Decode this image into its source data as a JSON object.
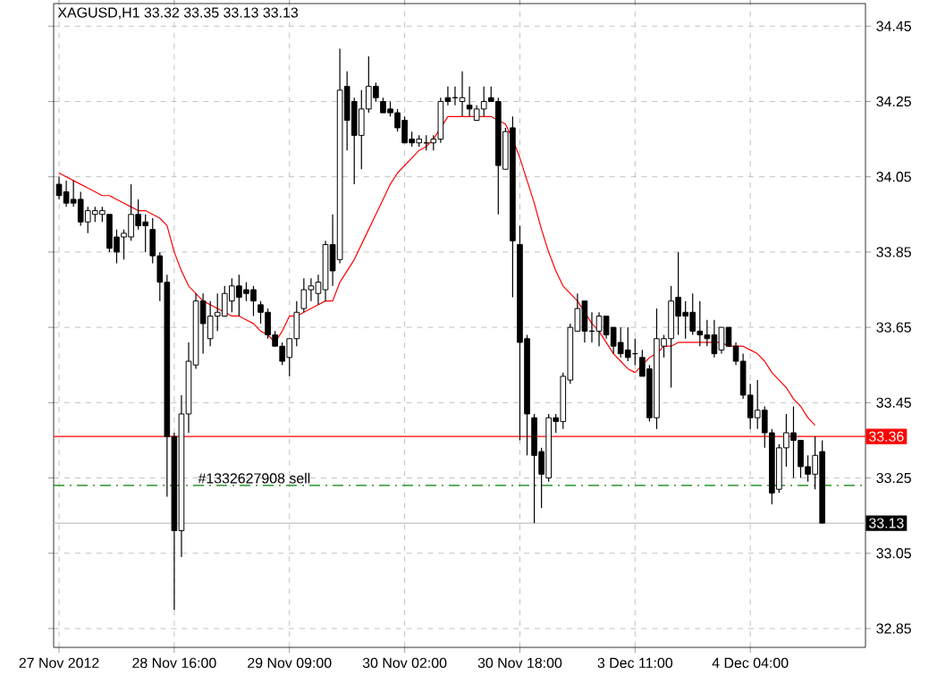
{
  "chart_data": {
    "type": "candlestick",
    "title": "XAGUSD,H1  33.32 33.35 33.13 33.13",
    "categories": [
      "27 Nov 2012",
      null,
      null,
      null,
      null,
      null,
      null,
      null,
      null,
      null,
      null,
      null,
      null,
      null,
      null,
      null,
      "28 Nov 16:00",
      null,
      null,
      null,
      null,
      null,
      null,
      null,
      null,
      null,
      null,
      null,
      null,
      null,
      null,
      null,
      "29 Nov 09:00",
      null,
      null,
      null,
      null,
      null,
      null,
      null,
      null,
      null,
      null,
      null,
      null,
      null,
      null,
      null,
      "30 Nov 02:00",
      null,
      null,
      null,
      null,
      null,
      null,
      null,
      null,
      null,
      null,
      null,
      null,
      null,
      null,
      null,
      "30 Nov 18:00",
      null,
      null,
      null,
      null,
      null,
      null,
      null,
      null,
      null,
      null,
      null,
      null,
      null,
      null,
      null,
      "3 Dec 11:00",
      null,
      null,
      null,
      null,
      null,
      null,
      null,
      null,
      null,
      null,
      null,
      null,
      null,
      null,
      null,
      "4 Dec 04:00",
      null,
      null,
      null,
      null,
      null,
      null,
      null,
      null,
      null,
      null
    ],
    "ohlc": [
      [
        34.03,
        34.05,
        33.99,
        34.0
      ],
      [
        34.01,
        34.04,
        33.97,
        33.98
      ],
      [
        33.99,
        34.04,
        33.97,
        33.98
      ],
      [
        33.99,
        34.01,
        33.92,
        33.93
      ],
      [
        33.93,
        33.97,
        33.9,
        33.96
      ],
      [
        33.95,
        33.97,
        33.93,
        33.96
      ],
      [
        33.95,
        33.97,
        33.93,
        33.96
      ],
      [
        33.95,
        33.95,
        33.85,
        33.86
      ],
      [
        33.89,
        33.91,
        33.82,
        33.85
      ],
      [
        33.89,
        33.91,
        33.83,
        33.9
      ],
      [
        33.89,
        34.03,
        33.88,
        33.95
      ],
      [
        33.95,
        33.99,
        33.91,
        33.92
      ],
      [
        33.93,
        33.95,
        33.85,
        33.92
      ],
      [
        33.91,
        33.94,
        33.82,
        33.84
      ],
      [
        33.84,
        33.85,
        33.72,
        33.77
      ],
      [
        33.77,
        33.79,
        33.2,
        33.36
      ],
      [
        33.36,
        33.37,
        32.9,
        33.11
      ],
      [
        33.11,
        33.47,
        33.04,
        33.42
      ],
      [
        33.42,
        33.61,
        33.37,
        33.56
      ],
      [
        33.55,
        33.74,
        33.54,
        33.72
      ],
      [
        33.72,
        33.74,
        33.58,
        33.66
      ],
      [
        33.62,
        33.72,
        33.6,
        33.68
      ],
      [
        33.68,
        33.74,
        33.64,
        33.69
      ],
      [
        33.68,
        33.76,
        33.68,
        33.74
      ],
      [
        33.72,
        33.78,
        33.69,
        33.76
      ],
      [
        33.76,
        33.79,
        33.68,
        33.73
      ],
      [
        33.75,
        33.77,
        33.72,
        33.74
      ],
      [
        33.75,
        33.76,
        33.68,
        33.72
      ],
      [
        33.71,
        33.72,
        33.66,
        33.69
      ],
      [
        33.69,
        33.7,
        33.62,
        33.63
      ],
      [
        33.63,
        33.64,
        33.6,
        33.6
      ],
      [
        33.6,
        33.61,
        33.55,
        33.56
      ],
      [
        33.57,
        33.62,
        33.52,
        33.62
      ],
      [
        33.62,
        33.72,
        33.6,
        33.69
      ],
      [
        33.7,
        33.78,
        33.69,
        33.75
      ],
      [
        33.75,
        33.78,
        33.72,
        33.76
      ],
      [
        33.74,
        33.79,
        33.71,
        33.77
      ],
      [
        33.75,
        33.88,
        33.72,
        33.87
      ],
      [
        33.87,
        33.95,
        33.76,
        33.8
      ],
      [
        33.83,
        34.39,
        33.82,
        34.28
      ],
      [
        34.29,
        34.33,
        34.12,
        34.2
      ],
      [
        34.25,
        34.26,
        34.03,
        34.16
      ],
      [
        34.16,
        34.28,
        34.07,
        34.23
      ],
      [
        34.23,
        34.37,
        34.22,
        34.29
      ],
      [
        34.29,
        34.3,
        34.25,
        34.26
      ],
      [
        34.25,
        34.26,
        34.22,
        34.22
      ],
      [
        34.23,
        34.25,
        34.21,
        34.22
      ],
      [
        34.22,
        34.23,
        34.17,
        34.18
      ],
      [
        34.2,
        34.21,
        34.14,
        34.14
      ],
      [
        34.15,
        34.17,
        34.13,
        34.14
      ],
      [
        34.14,
        34.16,
        34.13,
        34.15
      ],
      [
        34.14,
        34.16,
        34.12,
        34.14
      ],
      [
        34.14,
        34.16,
        34.12,
        34.15
      ],
      [
        34.15,
        34.26,
        34.14,
        34.25
      ],
      [
        34.26,
        34.29,
        34.24,
        34.25
      ],
      [
        34.26,
        34.29,
        34.24,
        34.26
      ],
      [
        34.25,
        34.33,
        34.21,
        34.26
      ],
      [
        34.24,
        34.29,
        34.21,
        34.23
      ],
      [
        34.2,
        34.24,
        34.2,
        34.23
      ],
      [
        34.23,
        34.29,
        34.21,
        34.25
      ],
      [
        34.26,
        34.29,
        34.25,
        34.25
      ],
      [
        34.25,
        34.26,
        33.95,
        34.08
      ],
      [
        34.07,
        34.18,
        34.07,
        34.17
      ],
      [
        34.18,
        34.21,
        33.73,
        33.88
      ],
      [
        33.87,
        33.92,
        33.35,
        33.61
      ],
      [
        33.62,
        33.63,
        33.31,
        33.42
      ],
      [
        33.41,
        33.42,
        33.13,
        33.31
      ],
      [
        33.32,
        33.33,
        33.17,
        33.26
      ],
      [
        33.25,
        33.42,
        33.24,
        33.41
      ],
      [
        33.41,
        33.42,
        33.37,
        33.4
      ],
      [
        33.4,
        33.53,
        33.38,
        33.52
      ],
      [
        33.51,
        33.66,
        33.5,
        33.65
      ],
      [
        33.64,
        33.74,
        33.64,
        33.7
      ],
      [
        33.72,
        33.72,
        33.61,
        33.64
      ],
      [
        33.64,
        33.69,
        33.61,
        33.64
      ],
      [
        33.64,
        33.69,
        33.6,
        33.68
      ],
      [
        33.68,
        33.68,
        33.62,
        33.63
      ],
      [
        33.65,
        33.65,
        33.58,
        33.6
      ],
      [
        33.61,
        33.65,
        33.57,
        33.58
      ],
      [
        33.59,
        33.65,
        33.56,
        33.57
      ],
      [
        33.58,
        33.62,
        33.55,
        33.58
      ],
      [
        33.57,
        33.59,
        33.52,
        33.52
      ],
      [
        33.54,
        33.55,
        33.4,
        33.41
      ],
      [
        33.41,
        33.7,
        33.38,
        33.62
      ],
      [
        33.6,
        33.63,
        33.57,
        33.62
      ],
      [
        33.62,
        33.76,
        33.49,
        33.72
      ],
      [
        33.73,
        33.85,
        33.63,
        33.68
      ],
      [
        33.69,
        33.72,
        33.62,
        33.68
      ],
      [
        33.69,
        33.74,
        33.63,
        33.64
      ],
      [
        33.64,
        33.72,
        33.6,
        33.63
      ],
      [
        33.63,
        33.67,
        33.6,
        33.62
      ],
      [
        33.63,
        33.67,
        33.57,
        33.58
      ],
      [
        33.59,
        33.65,
        33.58,
        33.65
      ],
      [
        33.65,
        33.65,
        33.6,
        33.6
      ],
      [
        33.6,
        33.61,
        33.55,
        33.56
      ],
      [
        33.56,
        33.58,
        33.46,
        33.47
      ],
      [
        33.47,
        33.5,
        33.38,
        33.41
      ],
      [
        33.41,
        33.51,
        33.38,
        33.43
      ],
      [
        33.43,
        33.44,
        33.33,
        33.37
      ],
      [
        33.37,
        33.38,
        33.18,
        33.21
      ],
      [
        33.22,
        33.34,
        33.21,
        33.33
      ],
      [
        33.33,
        33.42,
        33.28,
        33.37
      ],
      [
        33.37,
        33.44,
        33.25,
        33.35
      ],
      [
        33.35,
        33.35,
        33.25,
        33.28
      ],
      [
        33.28,
        33.31,
        33.24,
        33.26
      ],
      [
        33.26,
        33.36,
        33.22,
        33.31
      ],
      [
        33.32,
        33.35,
        33.13,
        33.13
      ]
    ],
    "series": [
      {
        "type": "line",
        "color": "#ff0000",
        "values": [
          34.06,
          34.05,
          34.04,
          34.03,
          34.02,
          34.01,
          34.0,
          34.0,
          33.99,
          33.98,
          33.97,
          33.96,
          33.96,
          33.95,
          33.94,
          33.92,
          33.85,
          33.8,
          33.76,
          33.74,
          33.72,
          33.71,
          33.7,
          33.69,
          33.68,
          33.68,
          33.67,
          33.66,
          33.64,
          33.63,
          33.61,
          33.64,
          33.68,
          33.68,
          33.69,
          33.7,
          33.71,
          33.72,
          33.72,
          33.77,
          33.8,
          33.83,
          33.87,
          33.91,
          33.95,
          33.99,
          34.03,
          34.06,
          34.08,
          34.1,
          34.12,
          34.13,
          34.15,
          34.18,
          34.21,
          34.21,
          34.21,
          34.21,
          34.21,
          34.21,
          34.21,
          34.2,
          34.19,
          34.15,
          34.1,
          34.04,
          33.98,
          33.91,
          33.85,
          33.8,
          33.76,
          33.74,
          33.72,
          33.69,
          33.66,
          33.64,
          33.61,
          33.58,
          33.56,
          33.54,
          33.53,
          33.55,
          33.57,
          33.58,
          33.6,
          33.6,
          33.61,
          33.61,
          33.61,
          33.61,
          33.61,
          33.61,
          33.61,
          33.6,
          33.6,
          33.6,
          33.59,
          33.58,
          33.56,
          33.53,
          33.51,
          33.49,
          33.46,
          33.44,
          33.41,
          33.39,
          null
        ]
      }
    ],
    "ylim": [
      32.8,
      34.51
    ],
    "yticks": [
      32.85,
      33.05,
      33.25,
      33.45,
      33.65,
      33.85,
      34.05,
      34.25,
      34.45
    ],
    "grid": true,
    "ref_lines": [
      {
        "axis": "y",
        "value": 33.36,
        "label": "33.36",
        "color": "#ff0000",
        "line_style": "solid"
      },
      {
        "axis": "y",
        "value": 33.23,
        "label": "#1332627908 sell",
        "color": "#008000",
        "line_style": "dashed"
      },
      {
        "axis": "y",
        "value": 33.13,
        "label": "33.13",
        "color": "#c0c0c0",
        "line_style": "solid"
      }
    ]
  }
}
